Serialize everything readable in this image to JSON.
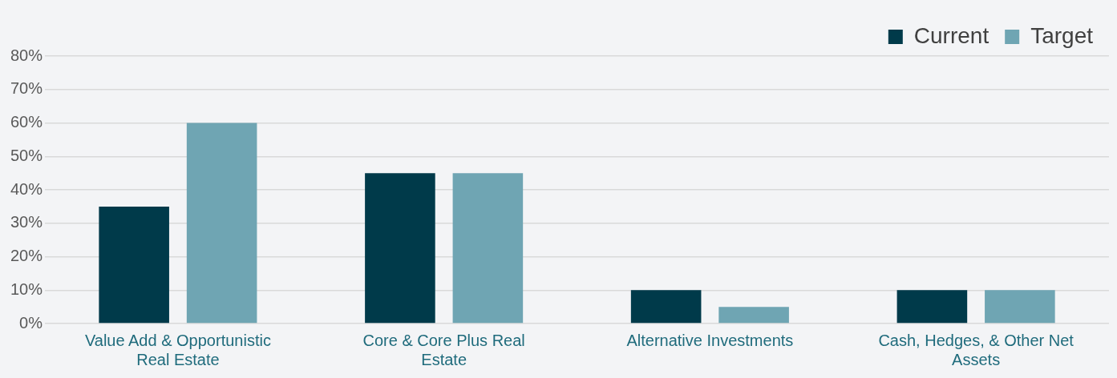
{
  "chart_data": {
    "type": "bar",
    "categories": [
      "Value Add & Opportunistic Real Estate",
      "Core & Core Plus Real Estate",
      "Alternative Investments",
      "Cash, Hedges, & Other Net Assets"
    ],
    "series": [
      {
        "name": "Current",
        "color": "#003a4a",
        "values": [
          35,
          45,
          10,
          10
        ]
      },
      {
        "name": "Target",
        "color": "#6fa5b3",
        "values": [
          60,
          45,
          5,
          10
        ]
      }
    ],
    "ylim": [
      0,
      80
    ],
    "yticks": [
      {
        "value": 0,
        "label": "0%"
      },
      {
        "value": 10,
        "label": "10%"
      },
      {
        "value": 20,
        "label": "20%"
      },
      {
        "value": 30,
        "label": "30%"
      },
      {
        "value": 40,
        "label": "40%"
      },
      {
        "value": 50,
        "label": "50%"
      },
      {
        "value": 60,
        "label": "60%"
      },
      {
        "value": 70,
        "label": "70%"
      },
      {
        "value": 80,
        "label": "80%"
      }
    ],
    "grid": "y",
    "legend": "top right"
  }
}
